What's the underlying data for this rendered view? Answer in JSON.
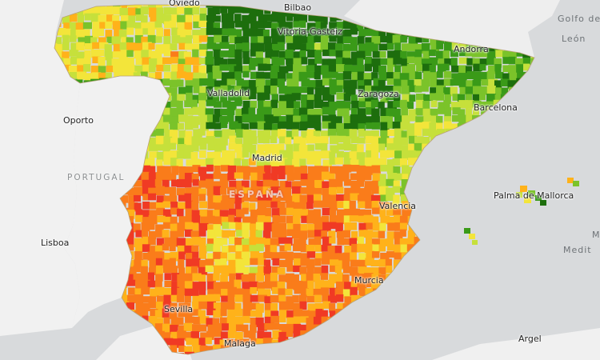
{
  "map": {
    "colors": {
      "sea": "#d8dadc",
      "land_other": "#eeeeee",
      "land_portugal": "#f1f1f1",
      "africa": "#f0f0f0",
      "very_low": "#f03a24",
      "low": "#fa7c1a",
      "mid_low": "#ffb21a",
      "mid": "#f3e53a",
      "mid_high": "#c6e03b",
      "high": "#7bc32a",
      "very_high": "#3a9a18",
      "highest": "#1d6e0d"
    },
    "labels": {
      "oviedo": "Oviedo",
      "bilbao": "Bilbao",
      "vitoria": "Vitoria-Gasteiz",
      "andorra": "Andorra",
      "valladolid": "Valladolid",
      "zaragoza": "Zaragoza",
      "barcelona": "Barcelona",
      "oporto": "Oporto",
      "portugal": "PORTUGAL",
      "madrid": "Madrid",
      "espana": "ESPAÑA",
      "palma": "Palma de Mallorca",
      "valencia": "Valencia",
      "lisboa": "Lisboa",
      "murcia": "Murcia",
      "sevilla": "Sevilla",
      "malaga": "Malaga",
      "argel": "Argel",
      "golfo_line1": "Golfo de",
      "golfo_line2": "León",
      "medit": "Medit",
      "m_edge": "M"
    }
  }
}
